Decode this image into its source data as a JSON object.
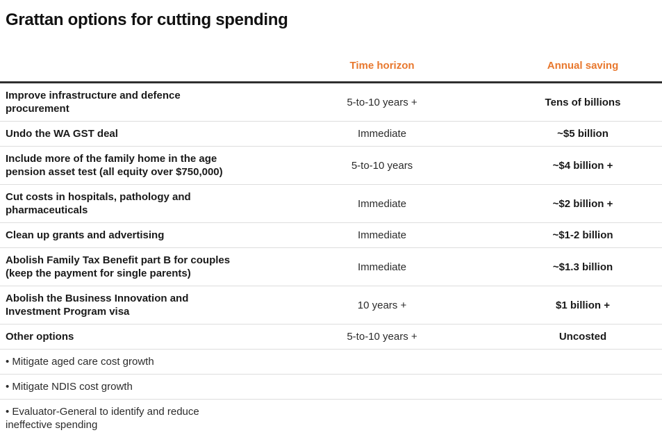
{
  "title": "Grattan options for cutting spending",
  "colors": {
    "accent_orange": "#e8782e",
    "header_rule": "#2e2e2e",
    "row_divider": "#dddddd",
    "text_dark": "#1a1a1a",
    "background": "#ffffff"
  },
  "chart_data": {
    "type": "table",
    "title": "Grattan options for cutting spending",
    "columns": [
      {
        "label": ""
      },
      {
        "label": "Time horizon"
      },
      {
        "label": "Annual saving"
      }
    ],
    "rows": [
      {
        "option": "Improve infrastructure and defence\nprocurement",
        "time_horizon": "5-to-10 years +",
        "annual_saving": "Tens of billions",
        "row_type": "option"
      },
      {
        "option": "Undo the WA GST deal",
        "time_horizon": "Immediate",
        "annual_saving": "~$5 billion",
        "row_type": "option"
      },
      {
        "option": "Include more of the family home in the age\npension asset test (all equity over $750,000)",
        "time_horizon": "5-to-10 years",
        "annual_saving": "~$4 billion +",
        "row_type": "option"
      },
      {
        "option": "Cut costs in hospitals, pathology and\npharmaceuticals",
        "time_horizon": "Immediate",
        "annual_saving": "~$2 billion +",
        "row_type": "option"
      },
      {
        "option": "Clean up grants and advertising",
        "time_horizon": "Immediate",
        "annual_saving": "~$1-2 billion",
        "row_type": "option"
      },
      {
        "option": "Abolish Family Tax Benefit part B for couples\n(keep the payment for single parents)",
        "time_horizon": "Immediate",
        "annual_saving": "~$1.3 billion",
        "row_type": "option"
      },
      {
        "option": "Abolish the Business Innovation and\nInvestment Program visa",
        "time_horizon": "10 years +",
        "annual_saving": "$1 billion +",
        "row_type": "option"
      },
      {
        "option": "Other options",
        "time_horizon": "5-to-10 years +",
        "annual_saving": "Uncosted",
        "row_type": "option"
      },
      {
        "option": "• Mitigate aged care cost growth",
        "time_horizon": "",
        "annual_saving": "",
        "row_type": "bullet"
      },
      {
        "option": "• Mitigate NDIS cost growth",
        "time_horizon": "",
        "annual_saving": "",
        "row_type": "bullet"
      },
      {
        "option": "• Evaluator-General to identify and reduce\nineffective spending",
        "time_horizon": "",
        "annual_saving": "",
        "row_type": "bullet"
      }
    ]
  }
}
